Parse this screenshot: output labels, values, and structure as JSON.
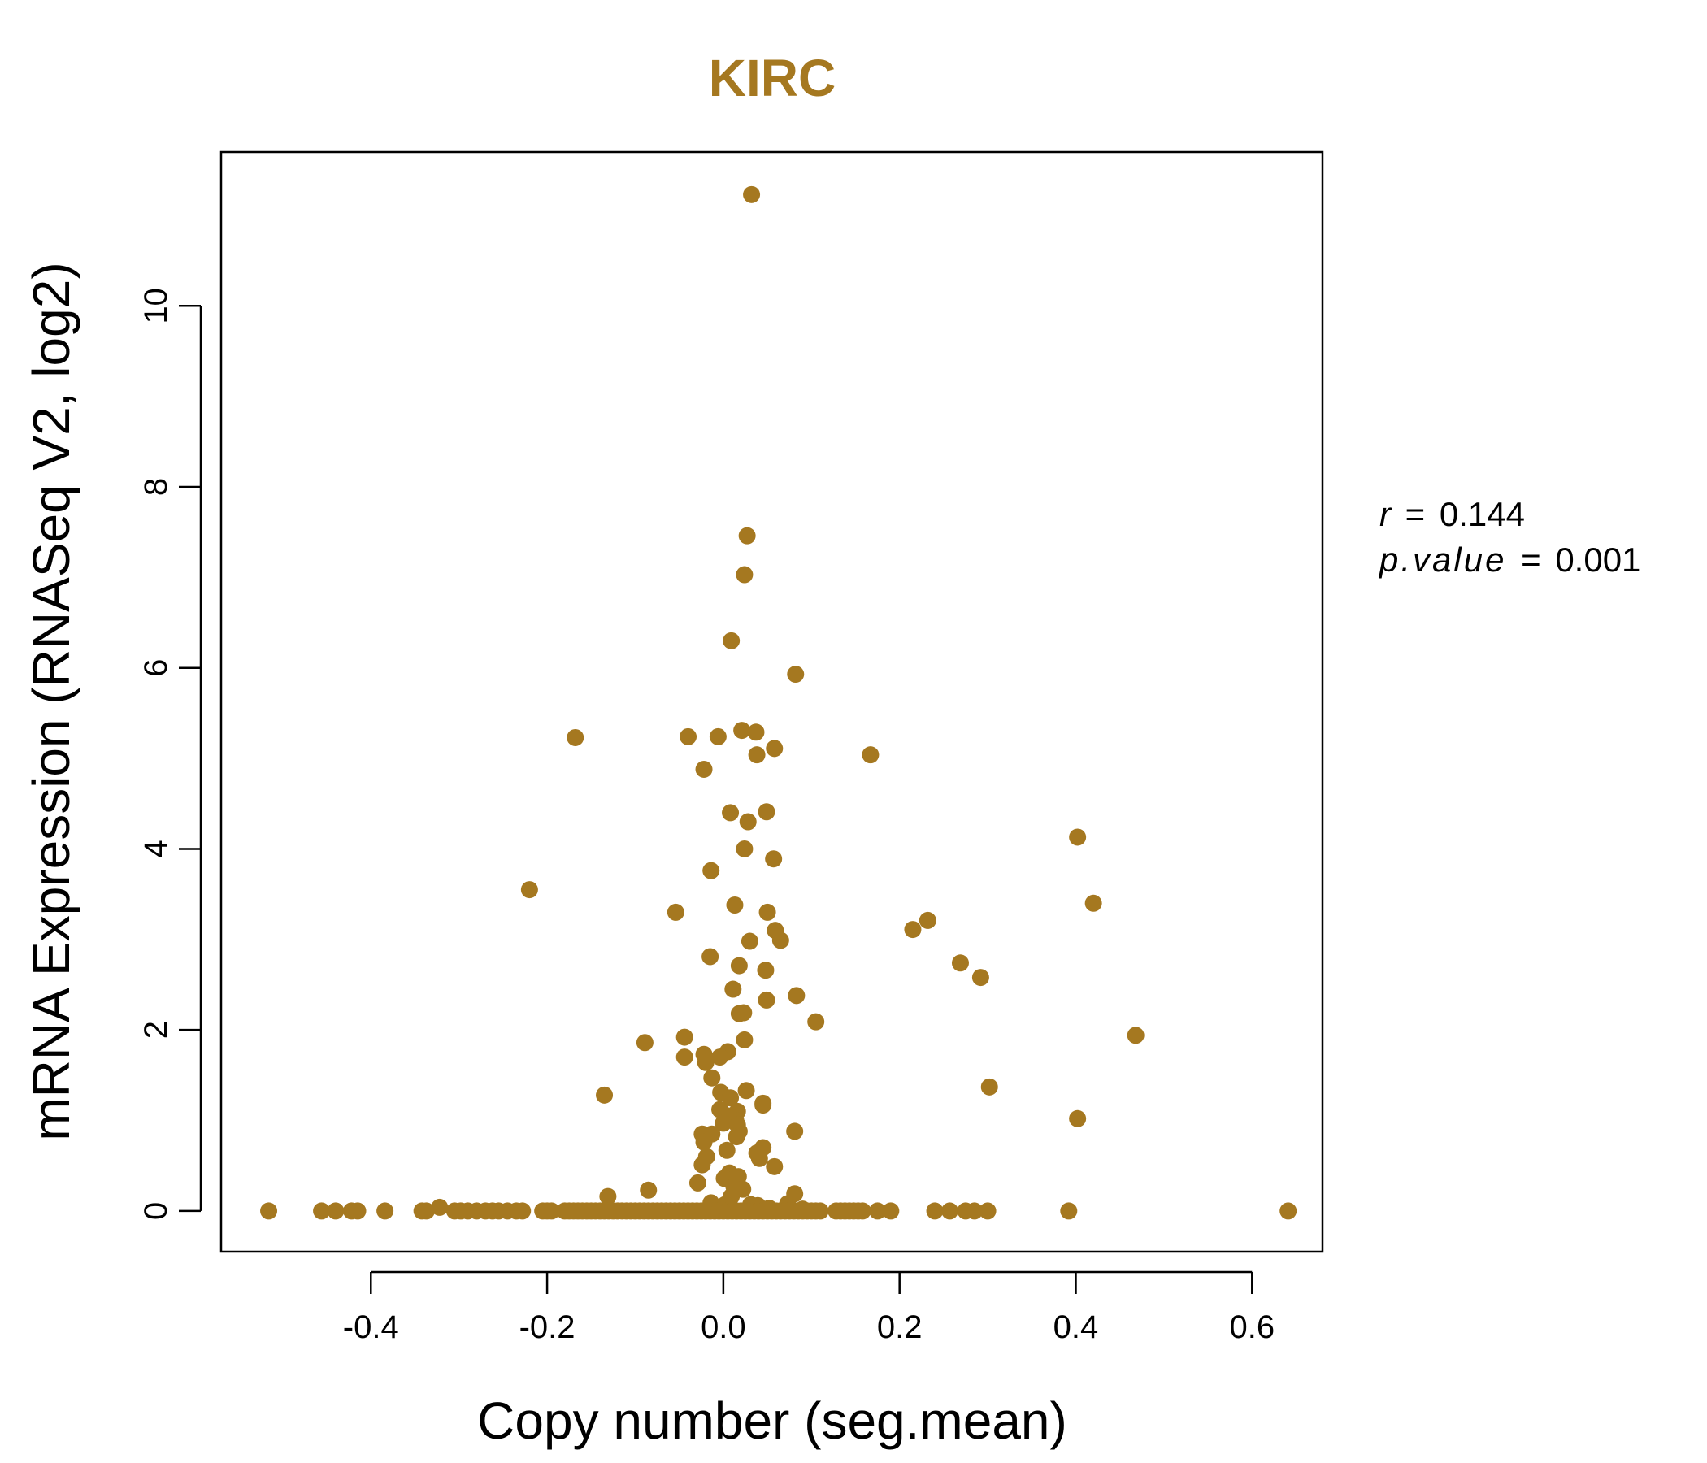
{
  "chart_data": {
    "type": "scatter",
    "title": "KIRC",
    "xlabel": "Copy number (seg.mean)",
    "ylabel": "mRNA Expression (RNASeq V2, log2)",
    "xlim": [
      -0.57,
      0.68
    ],
    "ylim": [
      -0.45,
      11.7
    ],
    "x_ticks": [
      -0.4,
      -0.2,
      0.0,
      0.2,
      0.4,
      0.6
    ],
    "x_tick_labels": [
      "-0.4",
      "-0.2",
      "0.0",
      "0.2",
      "0.4",
      "0.6"
    ],
    "y_ticks": [
      0,
      2,
      4,
      6,
      8,
      10
    ],
    "y_tick_labels": [
      "0",
      "2",
      "4",
      "6",
      "8",
      "10"
    ],
    "grid": false,
    "point_color": "#A57820",
    "stats": {
      "r_label": "r",
      "r_value": "0.144",
      "p_label": "p.value",
      "p_value": "0.001",
      "equals": "="
    },
    "points": [
      [
        0.032,
        11.23
      ],
      [
        0.027,
        7.46
      ],
      [
        0.024,
        7.03
      ],
      [
        0.009,
        6.3
      ],
      [
        0.082,
        5.93
      ],
      [
        -0.168,
        5.23
      ],
      [
        -0.04,
        5.24
      ],
      [
        -0.006,
        5.24
      ],
      [
        0.021,
        5.31
      ],
      [
        0.037,
        5.29
      ],
      [
        0.058,
        5.11
      ],
      [
        0.038,
        5.04
      ],
      [
        0.167,
        5.04
      ],
      [
        -0.022,
        4.88
      ],
      [
        0.008,
        4.4
      ],
      [
        0.049,
        4.41
      ],
      [
        0.028,
        4.3
      ],
      [
        0.402,
        4.13
      ],
      [
        0.024,
        4.0
      ],
      [
        0.057,
        3.89
      ],
      [
        -0.014,
        3.76
      ],
      [
        -0.22,
        3.55
      ],
      [
        0.42,
        3.4
      ],
      [
        0.013,
        3.38
      ],
      [
        -0.054,
        3.3
      ],
      [
        0.05,
        3.3
      ],
      [
        0.232,
        3.21
      ],
      [
        0.215,
        3.11
      ],
      [
        0.059,
        3.1
      ],
      [
        0.065,
        2.99
      ],
      [
        0.03,
        2.98
      ],
      [
        -0.015,
        2.81
      ],
      [
        0.269,
        2.74
      ],
      [
        0.018,
        2.71
      ],
      [
        0.048,
        2.66
      ],
      [
        0.292,
        2.58
      ],
      [
        0.011,
        2.45
      ],
      [
        0.083,
        2.38
      ],
      [
        0.049,
        2.33
      ],
      [
        0.023,
        2.19
      ],
      [
        0.018,
        2.18
      ],
      [
        0.105,
        2.09
      ],
      [
        0.468,
        1.94
      ],
      [
        -0.044,
        1.92
      ],
      [
        0.024,
        1.89
      ],
      [
        -0.089,
        1.86
      ],
      [
        0.005,
        1.76
      ],
      [
        -0.022,
        1.73
      ],
      [
        -0.004,
        1.7
      ],
      [
        -0.044,
        1.7
      ],
      [
        -0.02,
        1.64
      ],
      [
        -0.013,
        1.47
      ],
      [
        0.302,
        1.37
      ],
      [
        0.026,
        1.33
      ],
      [
        -0.003,
        1.31
      ],
      [
        -0.135,
        1.28
      ],
      [
        0.008,
        1.25
      ],
      [
        0.045,
        1.19
      ],
      [
        0.045,
        1.17
      ],
      [
        -0.004,
        1.12
      ],
      [
        0.016,
        1.1
      ],
      [
        0.006,
        1.05
      ],
      [
        0.402,
        1.02
      ],
      [
        0.014,
        1.0
      ],
      [
        0.016,
        0.95
      ],
      [
        0.0,
        0.97
      ],
      [
        0.081,
        0.88
      ],
      [
        0.018,
        0.88
      ],
      [
        -0.024,
        0.85
      ],
      [
        -0.013,
        0.85
      ],
      [
        0.015,
        0.82
      ],
      [
        -0.022,
        0.76
      ],
      [
        0.045,
        0.7
      ],
      [
        0.004,
        0.67
      ],
      [
        0.038,
        0.64
      ],
      [
        -0.019,
        0.6
      ],
      [
        0.041,
        0.58
      ],
      [
        0.058,
        0.49
      ],
      [
        -0.024,
        0.51
      ],
      [
        0.007,
        0.42
      ],
      [
        0.001,
        0.36
      ],
      [
        0.017,
        0.38
      ],
      [
        -0.029,
        0.31
      ],
      [
        0.012,
        0.27
      ],
      [
        0.022,
        0.24
      ],
      [
        -0.085,
        0.23
      ],
      [
        0.081,
        0.19
      ],
      [
        -0.131,
        0.16
      ],
      [
        0.009,
        0.16
      ],
      [
        -0.014,
        0.09
      ],
      [
        0.002,
        0.07
      ],
      [
        0.031,
        0.07
      ],
      [
        0.073,
        0.08
      ],
      [
        0.039,
        0.06
      ],
      [
        -0.322,
        0.04
      ],
      [
        0.052,
        0.03
      ],
      [
        0.09,
        0.02
      ],
      [
        -0.516,
        0
      ],
      [
        -0.456,
        0
      ],
      [
        -0.44,
        0
      ],
      [
        -0.422,
        0
      ],
      [
        -0.415,
        0
      ],
      [
        -0.384,
        0
      ],
      [
        -0.342,
        0
      ],
      [
        -0.337,
        0
      ],
      [
        -0.305,
        0
      ],
      [
        -0.298,
        0
      ],
      [
        -0.29,
        0
      ],
      [
        -0.28,
        0
      ],
      [
        -0.27,
        0
      ],
      [
        -0.262,
        0
      ],
      [
        -0.255,
        0
      ],
      [
        -0.245,
        0
      ],
      [
        -0.235,
        0
      ],
      [
        -0.228,
        0
      ],
      [
        -0.205,
        0
      ],
      [
        -0.2,
        0
      ],
      [
        -0.195,
        0
      ],
      [
        -0.18,
        0
      ],
      [
        -0.175,
        0
      ],
      [
        -0.17,
        0
      ],
      [
        -0.165,
        0
      ],
      [
        -0.16,
        0
      ],
      [
        -0.155,
        0
      ],
      [
        -0.15,
        0
      ],
      [
        -0.145,
        0
      ],
      [
        -0.14,
        0
      ],
      [
        -0.135,
        0
      ],
      [
        -0.13,
        0
      ],
      [
        -0.125,
        0
      ],
      [
        -0.12,
        0
      ],
      [
        -0.115,
        0
      ],
      [
        -0.11,
        0
      ],
      [
        -0.105,
        0
      ],
      [
        -0.1,
        0
      ],
      [
        -0.095,
        0
      ],
      [
        -0.09,
        0
      ],
      [
        -0.085,
        0
      ],
      [
        -0.08,
        0
      ],
      [
        -0.075,
        0
      ],
      [
        -0.07,
        0
      ],
      [
        -0.065,
        0
      ],
      [
        -0.06,
        0
      ],
      [
        -0.055,
        0
      ],
      [
        -0.05,
        0
      ],
      [
        -0.045,
        0
      ],
      [
        -0.04,
        0
      ],
      [
        -0.035,
        0
      ],
      [
        -0.03,
        0
      ],
      [
        -0.025,
        0
      ],
      [
        -0.02,
        0
      ],
      [
        -0.015,
        0
      ],
      [
        -0.01,
        0
      ],
      [
        -0.005,
        0
      ],
      [
        0.0,
        0
      ],
      [
        0.005,
        0
      ],
      [
        0.01,
        0
      ],
      [
        0.015,
        0
      ],
      [
        0.02,
        0
      ],
      [
        0.025,
        0
      ],
      [
        0.03,
        0
      ],
      [
        0.035,
        0
      ],
      [
        0.04,
        0
      ],
      [
        0.045,
        0
      ],
      [
        0.05,
        0
      ],
      [
        0.055,
        0
      ],
      [
        0.06,
        0
      ],
      [
        0.065,
        0
      ],
      [
        0.07,
        0
      ],
      [
        0.075,
        0
      ],
      [
        0.08,
        0
      ],
      [
        0.085,
        0
      ],
      [
        0.09,
        0
      ],
      [
        0.095,
        0
      ],
      [
        0.1,
        0
      ],
      [
        0.105,
        0
      ],
      [
        0.11,
        0
      ],
      [
        0.128,
        0
      ],
      [
        0.133,
        0
      ],
      [
        0.138,
        0
      ],
      [
        0.143,
        0
      ],
      [
        0.148,
        0
      ],
      [
        0.153,
        0
      ],
      [
        0.158,
        0
      ],
      [
        0.175,
        0
      ],
      [
        0.19,
        0
      ],
      [
        0.24,
        0
      ],
      [
        0.257,
        0
      ],
      [
        0.275,
        0
      ],
      [
        0.285,
        0
      ],
      [
        0.3,
        0
      ],
      [
        0.392,
        0
      ],
      [
        0.641,
        0
      ]
    ]
  }
}
